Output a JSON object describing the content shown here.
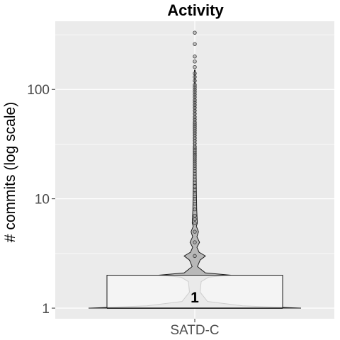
{
  "chart_data": {
    "type": "violin",
    "title": "Activity",
    "xlabel": "",
    "ylabel": "# commits (log scale)",
    "y_scale": "log10",
    "ylim": [
      0.8,
      420
    ],
    "y_ticks": [
      1,
      10,
      100
    ],
    "y_tick_labels": [
      "1",
      "10",
      "100"
    ],
    "categories": [
      "SATD-C"
    ],
    "box": {
      "q1": 1,
      "median": 1,
      "q3": 2
    },
    "median_label": "1",
    "violin_profile": [
      {
        "y": 1.0,
        "w": 1.0
      },
      {
        "y": 1.05,
        "w": 0.45
      },
      {
        "y": 1.15,
        "w": 0.12
      },
      {
        "y": 1.4,
        "w": 0.05
      },
      {
        "y": 1.75,
        "w": 0.06
      },
      {
        "y": 1.92,
        "w": 0.13
      },
      {
        "y": 2.0,
        "w": 0.34
      },
      {
        "y": 2.1,
        "w": 0.1
      },
      {
        "y": 2.4,
        "w": 0.025
      },
      {
        "y": 2.75,
        "w": 0.05
      },
      {
        "y": 3.0,
        "w": 0.1
      },
      {
        "y": 3.25,
        "w": 0.04
      },
      {
        "y": 3.6,
        "w": 0.02
      },
      {
        "y": 4.0,
        "w": 0.045
      },
      {
        "y": 4.5,
        "w": 0.02
      },
      {
        "y": 5.0,
        "w": 0.035
      },
      {
        "y": 5.6,
        "w": 0.015
      },
      {
        "y": 6.0,
        "w": 0.024
      },
      {
        "y": 8.0,
        "w": 0.018
      },
      {
        "y": 12.0,
        "w": 0.015
      },
      {
        "y": 30.0,
        "w": 0.01
      },
      {
        "y": 80.0,
        "w": 0.006
      },
      {
        "y": 150.0,
        "w": 0.003
      }
    ],
    "outliers": [
      3,
      4,
      5,
      6,
      6.5,
      7,
      8,
      9,
      10,
      11,
      12,
      13,
      14,
      15,
      16,
      17,
      18,
      19,
      20,
      21,
      22,
      23,
      24,
      25,
      26,
      27,
      28,
      29,
      30,
      32,
      34,
      36,
      38,
      40,
      42,
      44,
      46,
      48,
      50,
      53,
      56,
      60,
      64,
      68,
      72,
      76,
      80,
      85,
      90,
      95,
      100,
      105,
      110,
      120,
      130,
      140,
      160,
      180,
      200,
      260,
      330
    ],
    "colors": {
      "panel": "#ebebeb",
      "grid": "#ffffff",
      "violin_fill": "#b8b8b8",
      "violin_stroke": "#1a1a1a",
      "box_fill": "#f5f5f5",
      "box_stroke": "#1a1a1a",
      "outlier": "#333333"
    }
  }
}
